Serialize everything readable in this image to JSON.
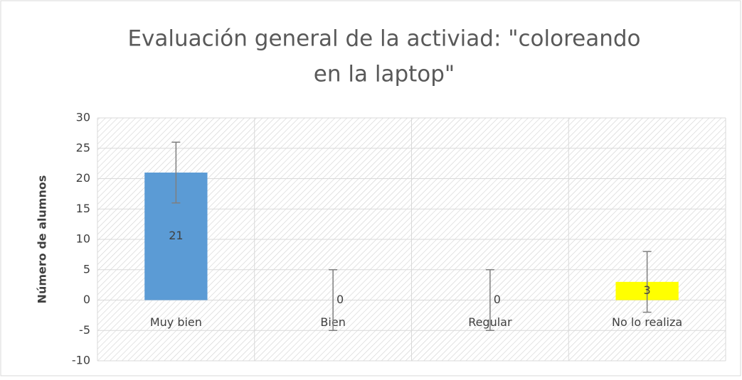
{
  "chart_data": {
    "type": "bar",
    "title": [
      "Evaluación general de la activiad: \"coloreando",
      "en la laptop\""
    ],
    "y_label": "Número de alumnos",
    "categories": [
      "Muy bien",
      "Bien",
      "Regular",
      "No lo realiza"
    ],
    "values": [
      21,
      0,
      0,
      3
    ],
    "errors": [
      5,
      5,
      5,
      5
    ],
    "colors": [
      "#5b9bd5",
      "#5b9bd5",
      "#5b9bd5",
      "#ffff00"
    ],
    "ylim": [
      -10,
      30
    ],
    "yticks": [
      -10,
      -5,
      0,
      5,
      10,
      15,
      20,
      25,
      30
    ],
    "grid": true
  }
}
